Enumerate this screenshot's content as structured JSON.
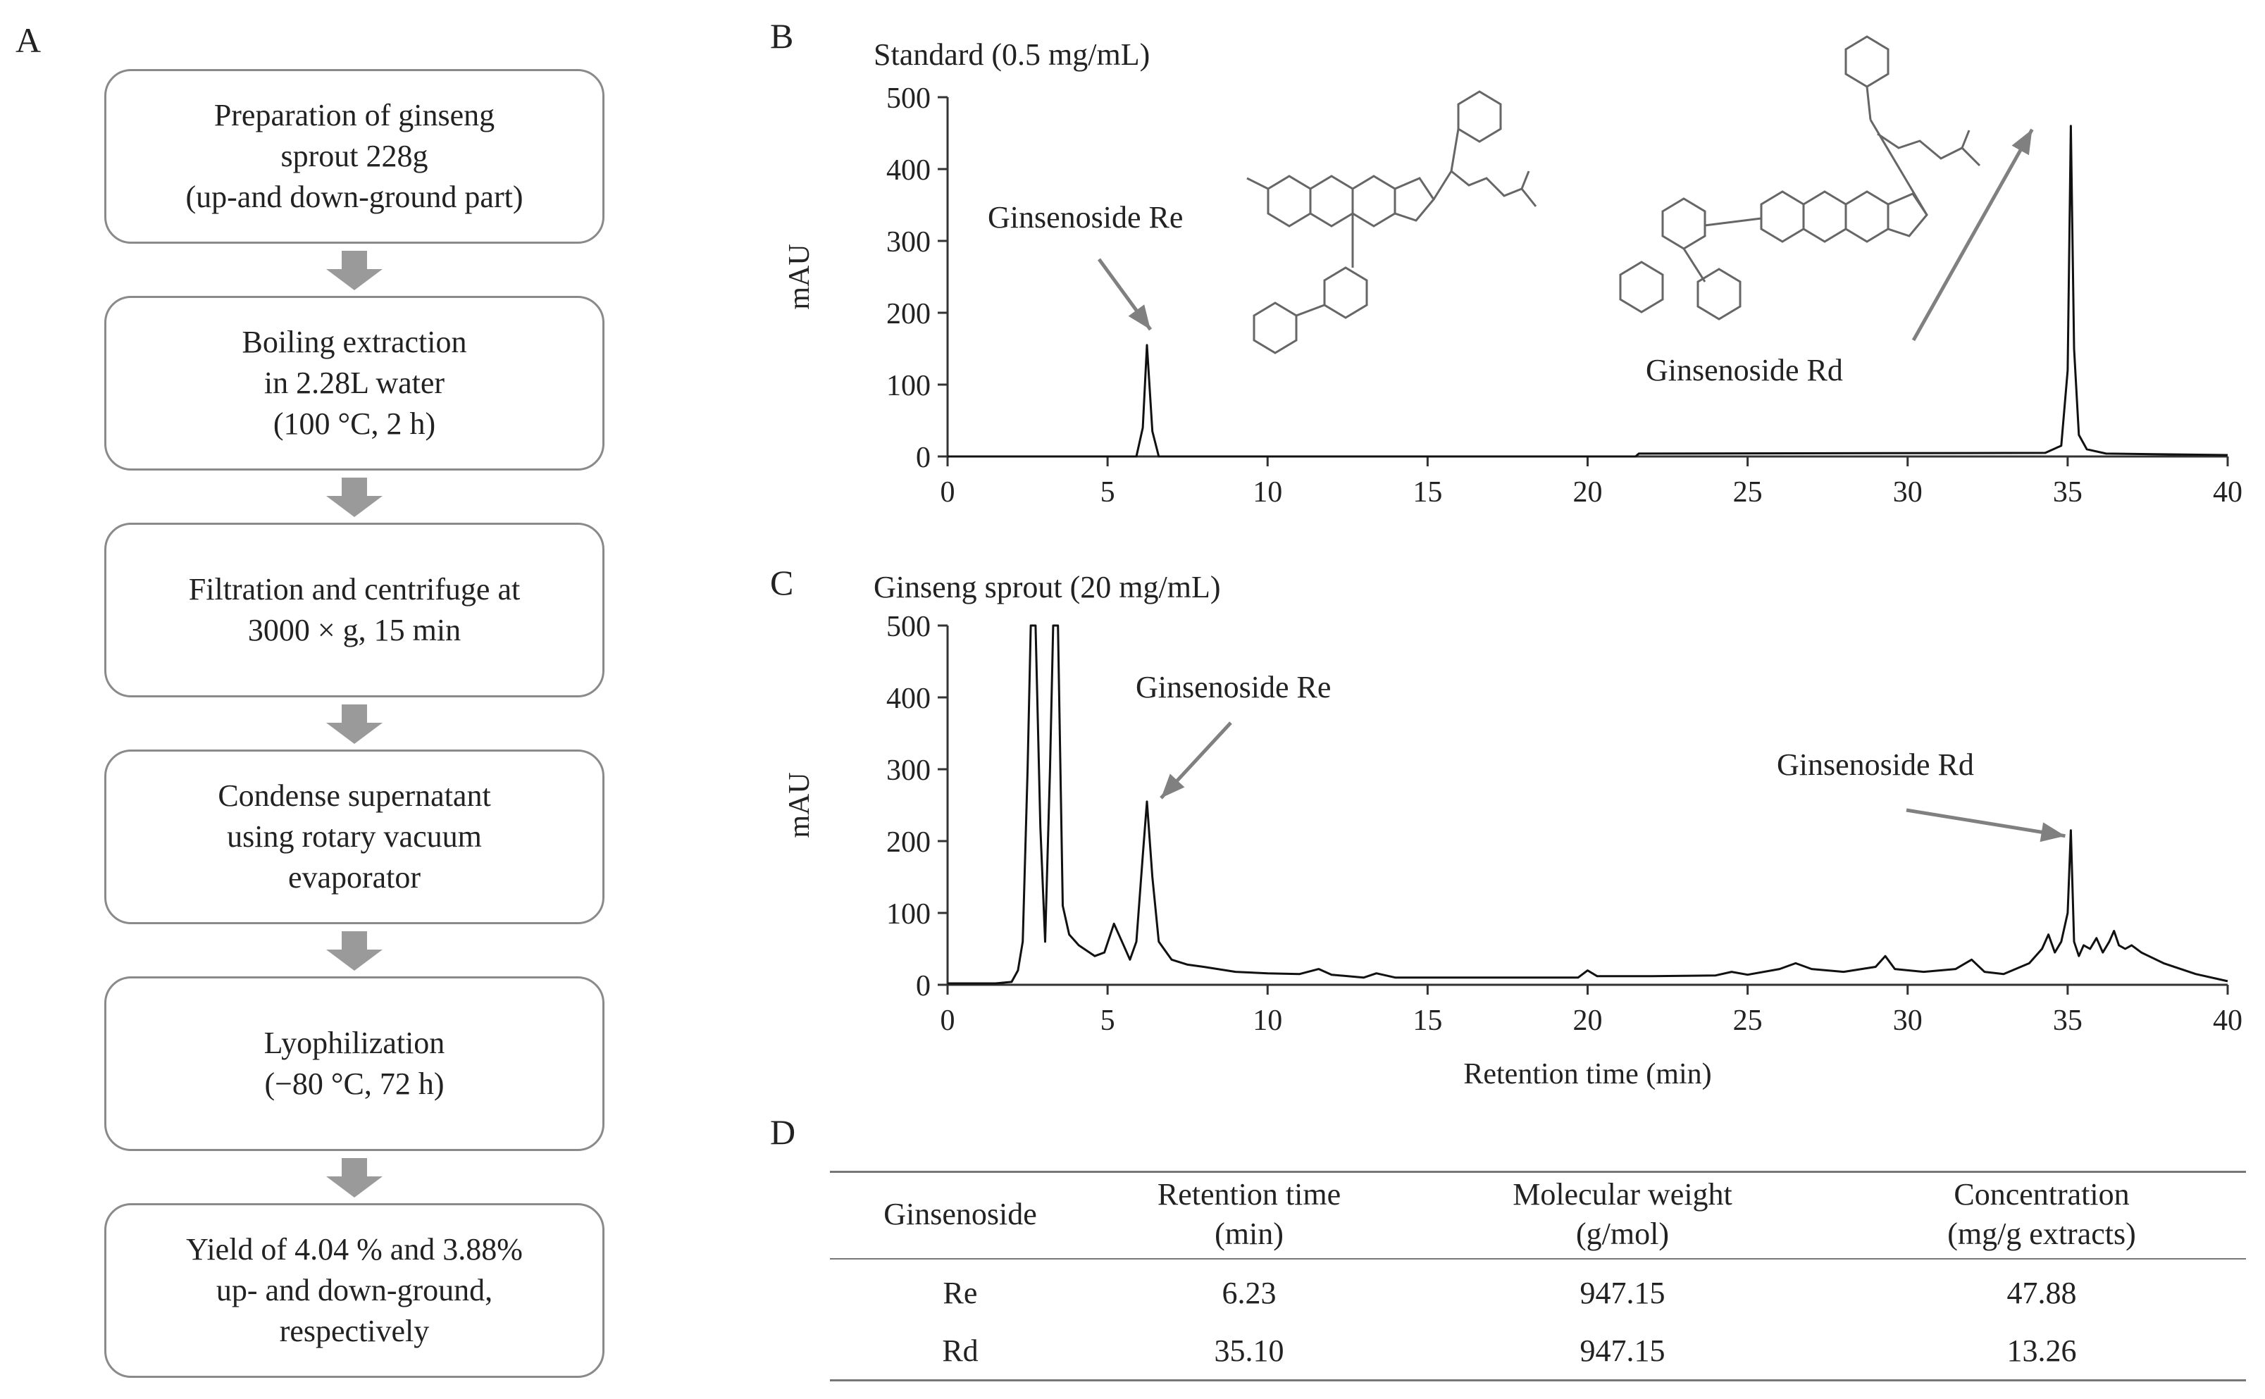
{
  "panels": {
    "a": "A",
    "b": "B",
    "c": "C",
    "d": "D"
  },
  "flowchart": {
    "steps": [
      "Preparation of ginseng\nsprout 228g\n(up-and down-ground part)",
      "Boiling extraction\nin 2.28L water\n(100 °C, 2 h)",
      "Filtration and centrifuge at\n3000 × g, 15 min",
      "Condense supernatant\nusing rotary vacuum\nevaporator",
      "Lyophilization\n(−80 °C, 72 h)",
      "Yield of  4.04 % and 3.88%\nup- and down-ground,\nrespectively"
    ]
  },
  "chart_data": [
    {
      "type": "line",
      "panel": "B",
      "title": "Standard (0.5 mg/mL)",
      "xlabel": "",
      "ylabel": "mAU",
      "xlim": [
        0,
        40
      ],
      "ylim": [
        0,
        500
      ],
      "xticks": [
        0,
        5,
        10,
        15,
        20,
        25,
        30,
        35,
        40
      ],
      "yticks": [
        0,
        100,
        200,
        300,
        400,
        500
      ],
      "series": [
        {
          "name": "Standard",
          "x": [
            0,
            5.9,
            6.1,
            6.23,
            6.4,
            6.6,
            21.5,
            21.6,
            34.3,
            34.8,
            35.0,
            35.1,
            35.2,
            35.35,
            35.6,
            36.2,
            40
          ],
          "y": [
            0,
            0,
            40,
            155,
            35,
            0,
            0,
            4,
            5,
            15,
            120,
            460,
            150,
            30,
            10,
            4,
            2
          ]
        }
      ],
      "annotations": [
        {
          "text": "Ginsenoside Re",
          "x": 6.23,
          "y": 155
        },
        {
          "text": "Ginsenoside Rd",
          "x": 35.1,
          "y": 460
        }
      ]
    },
    {
      "type": "line",
      "panel": "C",
      "title": "Ginseng sprout (20 mg/mL)",
      "xlabel": "Retention time (min)",
      "ylabel": "mAU",
      "xlim": [
        0,
        40
      ],
      "ylim": [
        0,
        500
      ],
      "xticks": [
        0,
        5,
        10,
        15,
        20,
        25,
        30,
        35,
        40
      ],
      "yticks": [
        0,
        100,
        200,
        300,
        400,
        500
      ],
      "series": [
        {
          "name": "Ginseng sprout",
          "x": [
            0,
            1.5,
            2.0,
            2.2,
            2.35,
            2.5,
            2.6,
            2.75,
            2.9,
            3.05,
            3.2,
            3.3,
            3.45,
            3.6,
            3.8,
            4.1,
            4.6,
            4.9,
            5.2,
            5.45,
            5.7,
            5.9,
            6.1,
            6.23,
            6.4,
            6.6,
            7.0,
            7.5,
            8.0,
            9.0,
            10.0,
            11.0,
            11.6,
            12.0,
            13.0,
            13.4,
            14.0,
            16.0,
            18.0,
            19.7,
            20.0,
            20.3,
            22.0,
            24.0,
            24.5,
            25.0,
            26.0,
            26.5,
            27.0,
            28.0,
            29.0,
            29.3,
            29.6,
            30.5,
            31.5,
            32.0,
            32.4,
            33.0,
            33.8,
            34.2,
            34.4,
            34.6,
            34.8,
            35.0,
            35.1,
            35.2,
            35.35,
            35.5,
            35.7,
            35.9,
            36.1,
            36.3,
            36.45,
            36.6,
            36.8,
            37.0,
            37.3,
            38.0,
            39.0,
            40.0
          ],
          "y": [
            2,
            2,
            4,
            20,
            60,
            300,
            500,
            500,
            220,
            60,
            300,
            500,
            500,
            110,
            70,
            55,
            40,
            45,
            85,
            60,
            35,
            60,
            180,
            255,
            150,
            60,
            35,
            28,
            25,
            18,
            16,
            15,
            22,
            14,
            10,
            16,
            10,
            10,
            10,
            10,
            20,
            12,
            12,
            13,
            18,
            14,
            22,
            30,
            22,
            18,
            25,
            40,
            22,
            18,
            22,
            35,
            18,
            15,
            30,
            50,
            70,
            45,
            60,
            100,
            215,
            60,
            40,
            55,
            50,
            65,
            45,
            60,
            75,
            55,
            50,
            55,
            45,
            30,
            15,
            5
          ]
        }
      ],
      "annotations": [
        {
          "text": "Ginsenoside Re",
          "x": 6.23,
          "y": 255
        },
        {
          "text": "Ginsenoside Rd",
          "x": 35.1,
          "y": 215
        }
      ]
    },
    {
      "type": "table",
      "panel": "D",
      "columns": [
        "Ginsenoside",
        "Retention time\n(min)",
        "Molecular weight\n(g/mol)",
        "Concentration\n(mg/g extracts)"
      ],
      "rows": [
        [
          "Re",
          "6.23",
          "947.15",
          "47.88"
        ],
        [
          "Rd",
          "35.10",
          "947.15",
          "13.26"
        ]
      ]
    }
  ]
}
